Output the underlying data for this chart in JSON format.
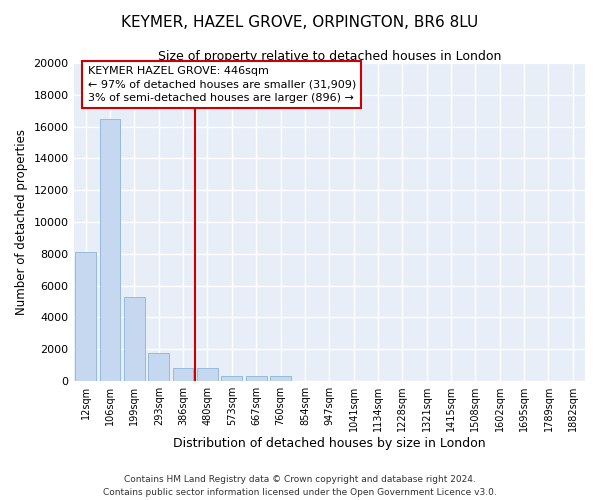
{
  "title": "KEYMER, HAZEL GROVE, ORPINGTON, BR6 8LU",
  "subtitle": "Size of property relative to detached houses in London",
  "xlabel": "Distribution of detached houses by size in London",
  "ylabel": "Number of detached properties",
  "bar_color": "#c5d8ef",
  "bar_edge_color": "#8ab4d8",
  "background_color": "#e8eef8",
  "grid_color": "#ffffff",
  "categories": [
    "12sqm",
    "106sqm",
    "199sqm",
    "293sqm",
    "386sqm",
    "480sqm",
    "573sqm",
    "667sqm",
    "760sqm",
    "854sqm",
    "947sqm",
    "1041sqm",
    "1134sqm",
    "1228sqm",
    "1321sqm",
    "1415sqm",
    "1508sqm",
    "1602sqm",
    "1695sqm",
    "1789sqm",
    "1882sqm"
  ],
  "values": [
    8100,
    16500,
    5300,
    1750,
    800,
    800,
    300,
    300,
    300,
    0,
    0,
    0,
    0,
    0,
    0,
    0,
    0,
    0,
    0,
    0,
    0
  ],
  "ylim": [
    0,
    20000
  ],
  "yticks": [
    0,
    2000,
    4000,
    6000,
    8000,
    10000,
    12000,
    14000,
    16000,
    18000,
    20000
  ],
  "vline_x": 4.5,
  "vline_color": "#cc0000",
  "annotation_title": "KEYMER HAZEL GROVE: 446sqm",
  "annotation_line1": "← 97% of detached houses are smaller (31,909)",
  "annotation_line2": "3% of semi-detached houses are larger (896) →",
  "annotation_box_color": "#cc0000",
  "footnote1": "Contains HM Land Registry data © Crown copyright and database right 2024.",
  "footnote2": "Contains public sector information licensed under the Open Government Licence v3.0."
}
